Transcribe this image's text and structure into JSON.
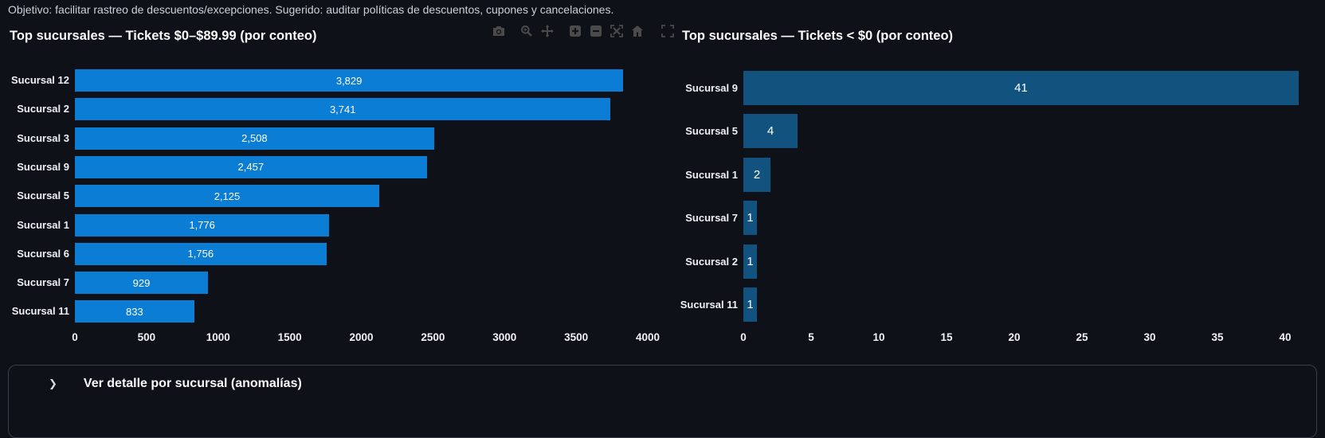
{
  "page": {
    "note": "Objetivo: facilitar rastreo de descuentos/excepciones. Sugerido: auditar políticas de descuentos, cupones y cancelaciones.",
    "background": "#0e1117"
  },
  "toolbar": {
    "icons": [
      "camera-icon",
      "zoom-icon",
      "pan-icon",
      "zoom-in-icon",
      "zoom-out-icon",
      "autoscale-icon",
      "reset-axes-icon",
      "fullscreen-icon"
    ],
    "icon_color": "#4a4a4a"
  },
  "expander": {
    "chevron": "❯",
    "label": "Ver detalle por sucursal (anomalías)"
  },
  "colors": {
    "left_bar": "#0b7dd4",
    "right_bar": "#11527f",
    "text": "#fafafa",
    "tick_text": "#f0f2f6"
  },
  "chart_data": [
    {
      "type": "bar",
      "orientation": "horizontal",
      "title": "Top sucursales — Tickets $0–$89.99 (por conteo)",
      "categories": [
        "Sucursal 12",
        "Sucursal 2",
        "Sucursal 3",
        "Sucursal 9",
        "Sucursal 5",
        "Sucursal 1",
        "Sucursal 6",
        "Sucursal 7",
        "Sucursal 11"
      ],
      "values": [
        3829,
        3741,
        2508,
        2457,
        2125,
        1776,
        1756,
        929,
        833
      ],
      "labels": [
        "3,829",
        "3,741",
        "2,508",
        "2,457",
        "2,125",
        "1,776",
        "1,756",
        "929",
        "833"
      ],
      "xticks": [
        0,
        500,
        1000,
        1500,
        2000,
        2500,
        3000,
        3500,
        4000
      ],
      "xlim": [
        0,
        4000
      ],
      "bar_color": "#0b7dd4",
      "grid": false,
      "legend": false,
      "value_labels": "inside-center"
    },
    {
      "type": "bar",
      "orientation": "horizontal",
      "title": "Top sucursales — Tickets < $0 (por conteo)",
      "categories": [
        "Sucursal 9",
        "Sucursal 5",
        "Sucursal 1",
        "Sucursal 7",
        "Sucursal 2",
        "Sucursal 11"
      ],
      "values": [
        41,
        4,
        2,
        1,
        1,
        1
      ],
      "labels": [
        "41",
        "4",
        "2",
        "1",
        "1",
        "1"
      ],
      "xticks": [
        0,
        5,
        10,
        15,
        20,
        25,
        30,
        35,
        40
      ],
      "xlim": [
        0,
        40
      ],
      "bar_color": "#11527f",
      "grid": false,
      "legend": false,
      "value_labels": "inside-center"
    }
  ]
}
